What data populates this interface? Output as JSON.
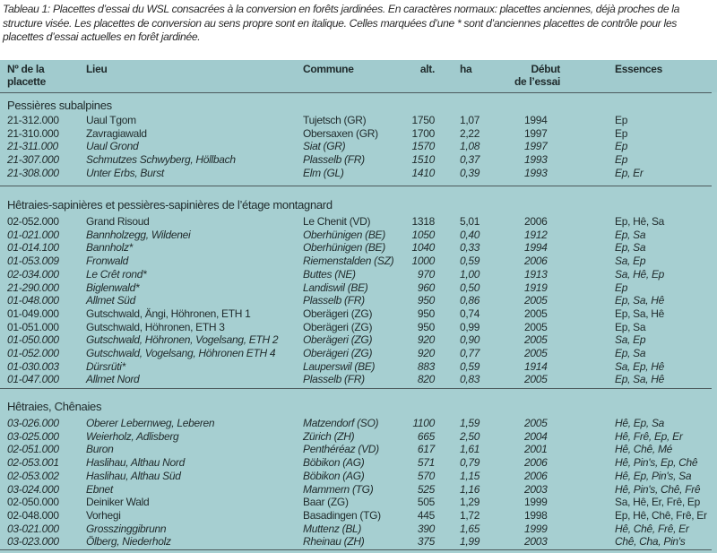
{
  "caption": "Tableau 1: Placettes d’essai du WSL consacrées à la conversion en forêts jardinées. En caractères normaux: placettes anciennes, déjà proches de la structure visée. Les placettes de conversion au sens propre sont en italique. Celles marquées d’une * sont d’anciennes placettes de contrôle pour les placettes d’essai actuelles en forêt jardinée.",
  "header": {
    "no_line1": "Nº de la",
    "no_line2": "placette",
    "lieu": "Lieu",
    "commune": "Commune",
    "alt": "alt.",
    "ha": "ha",
    "debut_line1": "Début",
    "debut_line2": "de l’essai",
    "essences": "Essences"
  },
  "sections": [
    {
      "title": "Pessières subalpines",
      "rows": [
        {
          "no": "21-312.000",
          "lieu": "Uaul Tgom",
          "commune": "Tujetsch (GR)",
          "alt": "1750",
          "ha": "1,07",
          "debut": "1994",
          "essences": "Ep",
          "italic": false
        },
        {
          "no": "21-310.000",
          "lieu": "Zavragiawald",
          "commune": "Obersaxen (GR)",
          "alt": "1700",
          "ha": "2,22",
          "debut": "1997",
          "essences": "Ep",
          "italic": false
        },
        {
          "no": "21-311.000",
          "lieu": "Uaul Grond",
          "commune": "Siat (GR)",
          "alt": "1570",
          "ha": "1,08",
          "debut": "1997",
          "essences": "Ep",
          "italic": true
        },
        {
          "no": "21-307.000",
          "lieu": "Schmutzes Schwyberg, Höllbach",
          "commune": "Plasselb (FR)",
          "alt": "1510",
          "ha": "0,37",
          "debut": "1993",
          "essences": "Ep",
          "italic": true
        },
        {
          "no": "21-308.000",
          "lieu": "Unter Erbs, Burst",
          "commune": "Elm (GL)",
          "alt": "1410",
          "ha": "0,39",
          "debut": "1993",
          "essences": "Ep, Er",
          "italic": true
        }
      ]
    },
    {
      "title": "Hêtraies-sapinières et pessières-sapinières de l’étage montagnard",
      "rows": [
        {
          "no": "02-052.000",
          "lieu": "Grand Risoud",
          "commune": "Le Chenit (VD)",
          "alt": "1318",
          "ha": "5,01",
          "debut": "2006",
          "essences": "Ep, Hê, Sa",
          "italic": false
        },
        {
          "no": "01-021.000",
          "lieu": "Bannholzegg, Wildenei",
          "commune": "Oberhünigen (BE)",
          "alt": "1050",
          "ha": "0,40",
          "debut": "1912",
          "essences": "Ep, Sa",
          "italic": true
        },
        {
          "no": "01-014.100",
          "lieu": "Bannholz*",
          "commune": "Oberhünigen (BE)",
          "alt": "1040",
          "ha": "0,33",
          "debut": "1994",
          "essences": "Ep, Sa",
          "italic": true
        },
        {
          "no": "01-053.009",
          "lieu": "Fronwald",
          "commune": "Riemenstalden (SZ)",
          "alt": "1000",
          "ha": "0,59",
          "debut": "2006",
          "essences": "Sa, Ep",
          "italic": true
        },
        {
          "no": "02-034.000",
          "lieu": "Le Crêt rond*",
          "commune": "Buttes (NE)",
          "alt": "970",
          "ha": "1,00",
          "debut": "1913",
          "essences": "Sa, Hê, Ep",
          "italic": true
        },
        {
          "no": "21-290.000",
          "lieu": "Biglenwald*",
          "commune": "Landiswil (BE)",
          "alt": "960",
          "ha": "0,50",
          "debut": "1919",
          "essences": "Ep",
          "italic": true
        },
        {
          "no": "01-048.000",
          "lieu": "Allmet Süd",
          "commune": "Plasselb (FR)",
          "alt": "950",
          "ha": "0,86",
          "debut": "2005",
          "essences": "Ep, Sa, Hê",
          "italic": true
        },
        {
          "no": "01-049.000",
          "lieu": "Gutschwald, Ängi, Höhronen, ETH 1",
          "commune": "Oberägeri (ZG)",
          "alt": "950",
          "ha": "0,74",
          "debut": "2005",
          "essences": "Ep, Sa, Hê",
          "italic": false
        },
        {
          "no": "01-051.000",
          "lieu": "Gutschwald, Höhronen, ETH 3",
          "commune": "Oberägeri (ZG)",
          "alt": "950",
          "ha": "0,99",
          "debut": "2005",
          "essences": "Ep, Sa",
          "italic": false
        },
        {
          "no": "01-050.000",
          "lieu": "Gutschwald, Höhronen, Vogelsang, ETH 2",
          "commune": "Oberägeri (ZG)",
          "alt": "920",
          "ha": "0,90",
          "debut": "2005",
          "essences": "Sa, Ep",
          "italic": true
        },
        {
          "no": "01-052.000",
          "lieu": "Gutschwald, Vogelsang, Höhronen ETH 4",
          "commune": "Oberägeri (ZG)",
          "alt": "920",
          "ha": "0,77",
          "debut": "2005",
          "essences": "Ep, Sa",
          "italic": true
        },
        {
          "no": "01-030.003",
          "lieu": "Dürsrüti*",
          "commune": "Lauperswil (BE)",
          "alt": "883",
          "ha": "0,59",
          "debut": "1914",
          "essences": "Sa, Ep, Hê",
          "italic": true
        },
        {
          "no": "01-047.000",
          "lieu": "Allmet Nord",
          "commune": "Plasselb (FR)",
          "alt": "820",
          "ha": "0,83",
          "debut": "2005",
          "essences": "Ep, Sa, Hê",
          "italic": true
        }
      ]
    },
    {
      "title": "Hêtraies, Chênaies",
      "rows": [
        {
          "no": "03-026.000",
          "lieu": "Oberer Lebernweg, Leberen",
          "commune": "Matzendorf (SO)",
          "alt": "1100",
          "ha": "1,59",
          "debut": "2005",
          "essences": "Hê, Ep, Sa",
          "italic": true
        },
        {
          "no": "03-025.000",
          "lieu": "Weierholz, Adlisberg",
          "commune": "Zürich (ZH)",
          "alt": "665",
          "ha": "2,50",
          "debut": "2004",
          "essences": "Hê, Frê, Ep, Er",
          "italic": true
        },
        {
          "no": "02-051.000",
          "lieu": "Buron",
          "commune": "Penthéréaz (VD)",
          "alt": "617",
          "ha": "1,61",
          "debut": "2001",
          "essences": "Hê, Chê, Mé",
          "italic": true
        },
        {
          "no": "02-053.001",
          "lieu": "Haslihau, Althau Nord",
          "commune": "Böbikon (AG)",
          "alt": "571",
          "ha": "0,79",
          "debut": "2006",
          "essences": "Hê, Pin's, Ep, Chê",
          "italic": true
        },
        {
          "no": "02-053.002",
          "lieu": "Haslihau, Althau Süd",
          "commune": "Böbikon (AG)",
          "alt": "570",
          "ha": "1,15",
          "debut": "2006",
          "essences": "Hê, Ep, Pin's, Sa",
          "italic": true
        },
        {
          "no": "03-024.000",
          "lieu": "Ebnet",
          "commune": "Mammern (TG)",
          "alt": "525",
          "ha": "1,16",
          "debut": "2003",
          "essences": "Hê, Pin's, Chê, Frê",
          "italic": true
        },
        {
          "no": "02-050.000",
          "lieu": "Deiniker Wald",
          "commune": "Baar (ZG)",
          "alt": "505",
          "ha": "1,29",
          "debut": "1999",
          "essences": "Sa, Hê, Er, Frê, Ep",
          "italic": false
        },
        {
          "no": "02-048.000",
          "lieu": "Vorhegi",
          "commune": "Basadingen (TG)",
          "alt": "445",
          "ha": "1,72",
          "debut": "1998",
          "essences": "Ep, Hê, Chê, Frê, Er",
          "italic": false
        },
        {
          "no": "03-021.000",
          "lieu": "Grosszinggibrunn",
          "commune": "Muttenz (BL)",
          "alt": "390",
          "ha": "1,65",
          "debut": "1999",
          "essences": "Hê, Chê, Frê, Er",
          "italic": true
        },
        {
          "no": "03-023.000",
          "lieu": "Ölberg, Niederholz",
          "commune": "Rheinau (ZH)",
          "alt": "375",
          "ha": "1,99",
          "debut": "2003",
          "essences": "Chê, Cha, Pin's",
          "italic": true
        }
      ]
    }
  ],
  "colors": {
    "table_bg": "#a6cfd1",
    "header_bg": "#a1cbce",
    "rule": "#4c5a5c"
  }
}
